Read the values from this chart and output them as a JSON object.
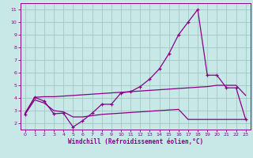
{
  "xlabel": "Windchill (Refroidissement éolien,°C)",
  "background_color": "#c8e8e8",
  "grid_color": "#a0c8c0",
  "line_color": "#880088",
  "xlim": [
    -0.5,
    23.5
  ],
  "ylim": [
    1.5,
    11.5
  ],
  "xticks": [
    0,
    1,
    2,
    3,
    4,
    5,
    6,
    7,
    8,
    9,
    10,
    11,
    12,
    13,
    14,
    15,
    16,
    17,
    18,
    19,
    20,
    21,
    22,
    23
  ],
  "yticks": [
    2,
    3,
    4,
    5,
    6,
    7,
    8,
    9,
    10,
    11
  ],
  "line1_x": [
    0,
    1,
    2,
    3,
    4,
    5,
    6,
    7,
    8,
    9,
    10,
    11,
    12,
    13,
    14,
    15,
    16,
    17,
    18,
    19,
    20,
    21,
    22,
    23
  ],
  "line1_y": [
    2.7,
    4.05,
    3.75,
    2.75,
    2.8,
    1.7,
    2.2,
    2.8,
    3.5,
    3.5,
    4.4,
    4.5,
    4.9,
    5.5,
    6.3,
    7.5,
    9.0,
    10.0,
    11.0,
    5.8,
    5.8,
    4.8,
    4.8,
    2.3
  ],
  "line2_x": [
    0,
    1,
    2,
    3,
    4,
    5,
    6,
    7,
    8,
    9,
    10,
    11,
    12,
    13,
    14,
    15,
    16,
    17,
    18,
    19,
    20,
    21,
    22,
    23
  ],
  "line2_y": [
    2.8,
    4.05,
    4.1,
    4.1,
    4.15,
    4.2,
    4.25,
    4.3,
    4.35,
    4.4,
    4.45,
    4.5,
    4.55,
    4.6,
    4.65,
    4.7,
    4.75,
    4.8,
    4.85,
    4.9,
    5.0,
    5.0,
    5.0,
    4.2
  ],
  "line3_x": [
    0,
    1,
    2,
    3,
    4,
    5,
    6,
    7,
    8,
    9,
    10,
    11,
    12,
    13,
    14,
    15,
    16,
    17,
    18,
    19,
    20,
    21,
    22,
    23
  ],
  "line3_y": [
    2.7,
    3.85,
    3.6,
    3.0,
    2.9,
    2.5,
    2.5,
    2.6,
    2.7,
    2.75,
    2.8,
    2.85,
    2.9,
    2.95,
    3.0,
    3.05,
    3.1,
    2.3,
    2.3,
    2.3,
    2.3,
    2.3,
    2.3,
    2.3
  ]
}
